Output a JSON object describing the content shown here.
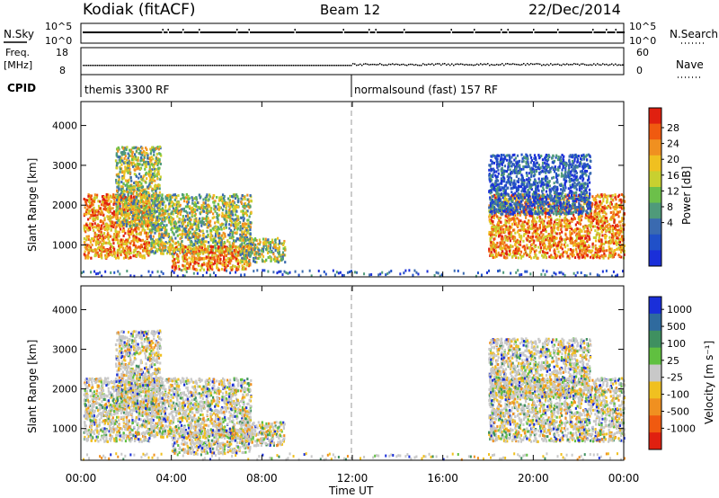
{
  "header": {
    "station": "Kodiak (fitACF)",
    "beam": "Beam 12",
    "date": "22/Dec/2014"
  },
  "panels": {
    "nsky": {
      "label": "N.Sky",
      "ticks": [
        "10^5",
        "10^0"
      ],
      "right_label": "N.Search",
      "right_ticks": [
        "10^5",
        "10^0"
      ]
    },
    "freq": {
      "label_line1": "Freq.",
      "label_line2": "[MHz]",
      "ticks": [
        "18",
        "8"
      ],
      "right_label": "Nave",
      "right_ticks": [
        "60",
        "0"
      ]
    },
    "cpid": {
      "label": "CPID",
      "modes": [
        "themis 3300 RF",
        "normalsound (fast) 157 RF"
      ]
    }
  },
  "chart_data": [
    {
      "type": "heatmap",
      "name": "power",
      "ylabel": "Slant Range [km]",
      "yticks": [
        1000,
        2000,
        3000,
        4000
      ],
      "ylim": [
        200,
        4600
      ],
      "xticks": [
        "00:00",
        "04:00",
        "08:00",
        "12:00",
        "16:00",
        "20:00",
        "00:00"
      ],
      "xlim_hours": [
        0,
        24
      ],
      "colorbar": {
        "label": "Power [dB]",
        "ticks": [
          "4",
          "8",
          "12",
          "16",
          "20",
          "24",
          "28"
        ],
        "colors": [
          "#1a2fd9",
          "#2050c8",
          "#3a6ab0",
          "#4f9a7a",
          "#6cc04a",
          "#c8d030",
          "#f0c020",
          "#f09020",
          "#f05a10",
          "#e02010"
        ]
      },
      "regions": [
        {
          "t": [
            0.1,
            3.0
          ],
          "r": [
            700,
            2300
          ],
          "level": "high"
        },
        {
          "t": [
            1.5,
            3.5
          ],
          "r": [
            1500,
            3500
          ],
          "level": "mid"
        },
        {
          "t": [
            3.0,
            7.5
          ],
          "r": [
            800,
            2300
          ],
          "level": "mid"
        },
        {
          "t": [
            4.0,
            7.5
          ],
          "r": [
            400,
            1000
          ],
          "level": "high"
        },
        {
          "t": [
            7.0,
            9.0
          ],
          "r": [
            600,
            1200
          ],
          "level": "mid"
        },
        {
          "t": [
            18.0,
            24.0
          ],
          "r": [
            700,
            2300
          ],
          "level": "high"
        },
        {
          "t": [
            18.0,
            22.5
          ],
          "r": [
            1800,
            3300
          ],
          "level": "low"
        }
      ]
    },
    {
      "type": "heatmap",
      "name": "velocity",
      "ylabel": "Slant Range [km]",
      "yticks": [
        1000,
        2000,
        3000,
        4000
      ],
      "ylim": [
        200,
        4600
      ],
      "xticks": [
        "00:00",
        "04:00",
        "08:00",
        "12:00",
        "16:00",
        "20:00",
        "00:00"
      ],
      "xlabel": "Time UT",
      "colorbar": {
        "label": "Velocity [m s⁻¹]",
        "ticks": [
          "1000",
          "500",
          "100",
          "25",
          "-25",
          "-100",
          "-500",
          "-1000"
        ],
        "colors": [
          "#1a2fd9",
          "#2f6a9e",
          "#3f9060",
          "#60c040",
          "#c8c8c8",
          "#f0c020",
          "#f09020",
          "#f05a10",
          "#e02010"
        ]
      }
    }
  ],
  "colors": {
    "background": "#ffffff",
    "grid": "#999999",
    "axis": "#000000"
  }
}
